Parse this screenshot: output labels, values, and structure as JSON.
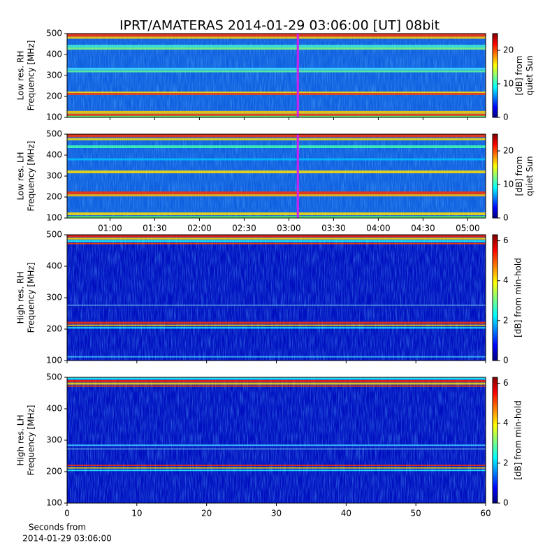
{
  "chart_data": [
    {
      "type": "heatmap",
      "title": "IPRT/AMATERAS 2014-01-29 03:06:00 [UT]   08bit",
      "ylabel": [
        "Low res. RH",
        "Frequency [MHz]"
      ],
      "ylim": [
        100,
        500
      ],
      "yticks": [
        100,
        200,
        300,
        400,
        500
      ],
      "xlim": [
        0.52,
        5.2
      ],
      "time_marker": 3.1,
      "marker_color": "#d020f0",
      "colorbar_label": [
        "[dB] from",
        "quiet Sun"
      ],
      "clim": [
        0,
        25
      ],
      "cticks": [
        0,
        10,
        20
      ]
    },
    {
      "type": "heatmap",
      "ylabel": [
        "Low res. LH",
        "Frequency [MHz]"
      ],
      "ylim": [
        100,
        500
      ],
      "yticks": [
        100,
        200,
        300,
        400,
        500
      ],
      "xlim": [
        0.52,
        5.2
      ],
      "time_marker": 3.1,
      "marker_color": "#d020f0",
      "xticks": [
        {
          "value": 1.0,
          "label": "01:00"
        },
        {
          "value": 1.5,
          "label": "01:30"
        },
        {
          "value": 2.0,
          "label": "02:00"
        },
        {
          "value": 2.5,
          "label": "02:30"
        },
        {
          "value": 3.0,
          "label": "03:00"
        },
        {
          "value": 3.5,
          "label": "03:30"
        },
        {
          "value": 4.0,
          "label": "04:00"
        },
        {
          "value": 4.5,
          "label": "04:30"
        },
        {
          "value": 5.0,
          "label": "05:00"
        }
      ],
      "colorbar_label": [
        "[dB] from",
        "quiet Sun"
      ],
      "clim": [
        0,
        25
      ],
      "cticks": [
        0,
        10,
        20
      ]
    },
    {
      "type": "heatmap",
      "ylabel": [
        "High res. RH",
        "Frequency [MHz]"
      ],
      "ylim": [
        100,
        500
      ],
      "yticks": [
        100,
        200,
        300,
        400,
        500
      ],
      "xlim": [
        0,
        60
      ],
      "colorbar_label": [
        "[dB] from min-hold"
      ],
      "clim": [
        0,
        6.3
      ],
      "cticks": [
        0,
        2,
        4,
        6
      ]
    },
    {
      "type": "heatmap",
      "ylabel": [
        "High res. LH",
        "Frequency [MHz]"
      ],
      "ylim": [
        100,
        500
      ],
      "yticks": [
        100,
        200,
        300,
        400,
        500
      ],
      "xlim": [
        0,
        60
      ],
      "xticks": [
        0,
        10,
        20,
        30,
        40,
        50,
        60
      ],
      "xlabel": [
        "Seconds from",
        "2014-01-29 03:06:00"
      ],
      "colorbar_label": [
        "[dB] from min-hold"
      ],
      "clim": [
        0,
        6.3
      ],
      "cticks": [
        0,
        2,
        4,
        6
      ]
    }
  ]
}
